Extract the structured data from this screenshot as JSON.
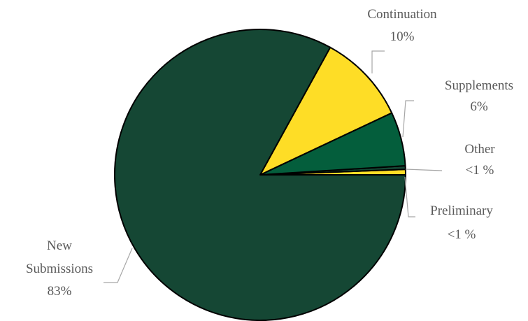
{
  "chart_data": {
    "type": "pie",
    "title": "",
    "slices": [
      {
        "label_lines": [
          "New",
          "Submissions"
        ],
        "value": 83,
        "value_label": "83%",
        "color": "#154734"
      },
      {
        "label_lines": [
          "Continuation"
        ],
        "value": 10,
        "value_label": "10%",
        "color": "#FEDD26"
      },
      {
        "label_lines": [
          "Supplements"
        ],
        "value": 6,
        "value_label": "6%",
        "color": "#045E3C"
      },
      {
        "label_lines": [
          "Other"
        ],
        "value": 0.4,
        "value_label": "<1 %",
        "color": "#154734"
      },
      {
        "label_lines": [
          "Preliminary"
        ],
        "value": 0.6,
        "value_label": "<1 %",
        "color": "#FEDD26"
      }
    ],
    "legend": "none",
    "data_labels": "outside with leader lines"
  }
}
